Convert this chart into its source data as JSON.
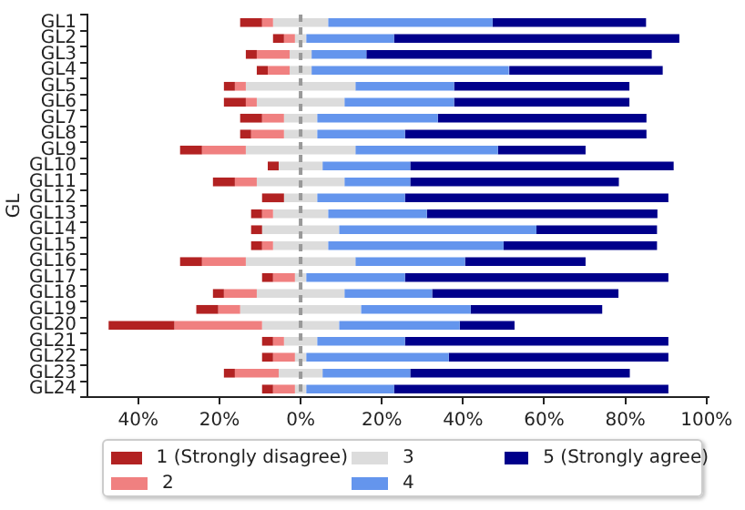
{
  "chart_data": {
    "type": "bar",
    "orientation": "horizontal",
    "ylabel": "GL",
    "categories": [
      "GL1",
      "GL2",
      "GL3",
      "GL4",
      "GL5",
      "GL6",
      "GL7",
      "GL8",
      "GL9",
      "GL10",
      "GL11",
      "GL12",
      "GL13",
      "GL14",
      "GL15",
      "GL16",
      "GL17",
      "GL18",
      "GL19",
      "GL20",
      "GL21",
      "GL22",
      "GL23",
      "GL24"
    ],
    "series": [
      {
        "name": "1 (Strongly disagree)",
        "color": "#b22222",
        "values": [
          5.4,
          2.7,
          2.7,
          2.7,
          2.7,
          5.4,
          5.4,
          2.7,
          5.4,
          2.7,
          5.4,
          5.4,
          2.7,
          2.7,
          2.7,
          5.4,
          2.7,
          2.7,
          5.4,
          16.2,
          2.7,
          2.7,
          2.7,
          2.7
        ],
        "base": [
          -14.9,
          -6.8,
          -13.5,
          -10.8,
          -18.9,
          -18.9,
          -14.9,
          -14.9,
          -29.7,
          -8.1,
          -21.6,
          -9.5,
          -12.2,
          -12.2,
          -12.2,
          -29.7,
          -9.5,
          -21.6,
          -25.7,
          -47.3,
          -9.5,
          -9.5,
          -18.9,
          -9.5
        ]
      },
      {
        "name": "2",
        "color": "#f08080",
        "values": [
          2.7,
          2.7,
          8.1,
          5.4,
          2.7,
          2.7,
          5.4,
          8.1,
          10.8,
          null,
          5.4,
          null,
          2.7,
          null,
          2.7,
          10.8,
          5.4,
          8.1,
          5.4,
          21.6,
          2.7,
          5.4,
          10.8,
          5.4
        ],
        "base": [
          -9.5,
          -4.1,
          -10.8,
          -8.1,
          -16.2,
          -13.5,
          -9.5,
          -12.2,
          -24.3,
          null,
          -16.2,
          null,
          -9.5,
          null,
          -9.5,
          -24.3,
          -6.8,
          -18.9,
          -20.3,
          -31.1,
          -6.8,
          -6.8,
          -16.2,
          -6.8
        ]
      },
      {
        "name": "3",
        "color": "#dcdcdc",
        "values": [
          13.5,
          2.7,
          5.4,
          5.4,
          27.0,
          21.6,
          8.1,
          8.1,
          27.0,
          10.8,
          21.6,
          8.1,
          13.5,
          18.9,
          13.5,
          27.0,
          2.7,
          21.6,
          29.7,
          18.9,
          8.1,
          2.7,
          10.8,
          2.7
        ],
        "base": [
          -6.8,
          -1.4,
          -2.7,
          -2.7,
          -13.5,
          -10.8,
          -4.1,
          -4.1,
          -13.5,
          -5.4,
          -10.8,
          -4.1,
          -6.8,
          -9.5,
          -6.8,
          -13.5,
          -1.4,
          -10.8,
          -14.9,
          -9.5,
          -4.1,
          -1.4,
          -5.4,
          -1.4
        ]
      },
      {
        "name": "4",
        "color": "#6495ed",
        "values": [
          40.5,
          21.6,
          13.5,
          48.6,
          24.3,
          27.0,
          29.7,
          21.6,
          35.1,
          21.6,
          16.2,
          21.6,
          24.3,
          48.6,
          43.2,
          27.0,
          24.3,
          21.6,
          27.0,
          29.7,
          21.6,
          35.1,
          21.6,
          21.6
        ],
        "base": [
          6.8,
          1.4,
          2.7,
          2.7,
          13.5,
          10.8,
          4.1,
          4.1,
          13.5,
          5.4,
          10.8,
          4.1,
          6.8,
          9.5,
          6.8,
          13.5,
          1.4,
          10.8,
          14.9,
          9.5,
          4.1,
          1.4,
          5.4,
          1.4
        ]
      },
      {
        "name": "5 (Strongly agree)",
        "color": "#00008b",
        "values": [
          37.8,
          70.3,
          70.3,
          37.8,
          43.2,
          43.2,
          51.4,
          59.5,
          21.6,
          64.9,
          51.4,
          64.9,
          56.8,
          29.7,
          37.8,
          29.7,
          64.9,
          45.9,
          32.4,
          13.5,
          64.9,
          54.1,
          54.1,
          67.6
        ],
        "base": [
          47.3,
          23.0,
          16.2,
          51.4,
          37.8,
          37.8,
          33.8,
          25.7,
          48.6,
          27.0,
          27.0,
          25.7,
          31.1,
          58.1,
          50.0,
          40.5,
          25.7,
          32.4,
          41.9,
          39.2,
          25.7,
          36.5,
          27.0,
          23.0
        ]
      }
    ],
    "xlim": [
      -52.5,
      100.5
    ],
    "xticks": [
      {
        "value": -40,
        "label": "40%"
      },
      {
        "value": -20,
        "label": "20%"
      },
      {
        "value": 0,
        "label": "0%"
      },
      {
        "value": 20,
        "label": "20%"
      },
      {
        "value": 40,
        "label": "40%"
      },
      {
        "value": 60,
        "label": "60%"
      },
      {
        "value": 80,
        "label": "80%"
      },
      {
        "value": 100,
        "label": "100%"
      }
    ],
    "ref_lines": [
      {
        "axis": "x",
        "value": 0,
        "color": "#999999",
        "line_style": "dashed"
      }
    ],
    "legend": "bottom",
    "grid": false
  }
}
